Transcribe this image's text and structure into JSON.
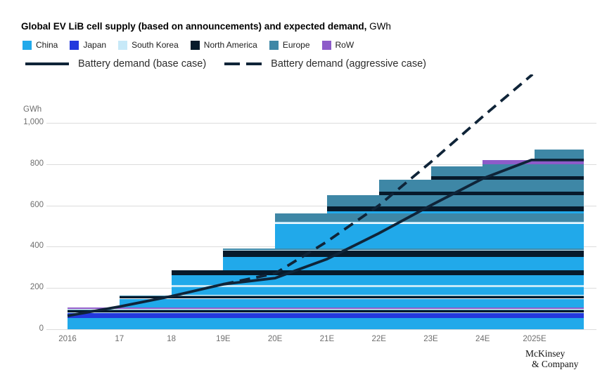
{
  "title": {
    "main": "Global EV LiB cell supply (based on announcements) and expected demand,",
    "unit": "GWh"
  },
  "legend": {
    "regions": [
      {
        "label": "China",
        "color": "#21a9ea"
      },
      {
        "label": "Japan",
        "color": "#2339dd"
      },
      {
        "label": "South Korea",
        "color": "#c7e9f8"
      },
      {
        "label": "North America",
        "color": "#071a2b"
      },
      {
        "label": "Europe",
        "color": "#3e87a6"
      },
      {
        "label": "RoW",
        "color": "#8d5bc9"
      }
    ],
    "lines": [
      {
        "label": "Battery demand (base case)",
        "style": "solid"
      },
      {
        "label": "Battery demand (aggressive case)",
        "style": "dashed"
      }
    ]
  },
  "axes": {
    "y_title": "GWh",
    "y_tick_labels": [
      "0",
      "200",
      "400",
      "600",
      "800",
      "1,000"
    ],
    "y_tick_values": [
      0,
      200,
      400,
      600,
      800,
      1000
    ],
    "x_tick_labels": [
      "2016",
      "17",
      "18",
      "19E",
      "20E",
      "21E",
      "22E",
      "23E",
      "24E",
      "2025E"
    ]
  },
  "colors": {
    "demand_line": "#0f2438",
    "grid": "#dcdcdc",
    "axis_text": "#6e6e6e"
  },
  "logo": {
    "line1": "McKinsey",
    "line2": "& Company"
  },
  "chart_data": {
    "type": "bar",
    "subtype": "stacked-cumulative-supply-with-demand-lines",
    "title": "Global EV LiB cell supply (based on announcements) and expected demand",
    "unit": "GWh",
    "ylabel": "GWh",
    "ylim": [
      0,
      1000
    ],
    "grid": true,
    "legend_position": "top",
    "categories": [
      "2016",
      "17",
      "18",
      "19E",
      "20E",
      "21E",
      "22E",
      "23E",
      "24E",
      "2025E"
    ],
    "supply_totals": [
      105,
      165,
      285,
      390,
      560,
      650,
      725,
      790,
      820,
      870
    ],
    "segments_by_year": [
      {
        "year": "2016",
        "added_from": 0,
        "added_to": 105,
        "segments": [
          {
            "region": "China",
            "from": 0,
            "to": 53
          },
          {
            "region": "Japan",
            "from": 53,
            "to": 77
          },
          {
            "region": "South Korea",
            "from": 77,
            "to": 82
          },
          {
            "region": "North America",
            "from": 82,
            "to": 93
          },
          {
            "region": "Europe",
            "from": 93,
            "to": 97
          },
          {
            "region": "RoW",
            "from": 97,
            "to": 105
          }
        ]
      },
      {
        "year": "17",
        "added_from": 105,
        "added_to": 165,
        "segments": [
          {
            "region": "China",
            "from": 105,
            "to": 148
          },
          {
            "region": "North America",
            "from": 148,
            "to": 162
          },
          {
            "region": "Europe",
            "from": 162,
            "to": 165
          }
        ]
      },
      {
        "year": "18",
        "added_from": 165,
        "added_to": 285,
        "segments": [
          {
            "region": "China",
            "from": 165,
            "to": 203
          },
          {
            "region": "South Korea",
            "from": 203,
            "to": 214
          },
          {
            "region": "China",
            "from": 214,
            "to": 262
          },
          {
            "region": "North America",
            "from": 262,
            "to": 285
          }
        ]
      },
      {
        "year": "19E",
        "added_from": 285,
        "added_to": 390,
        "segments": [
          {
            "region": "China",
            "from": 285,
            "to": 352
          },
          {
            "region": "North America",
            "from": 352,
            "to": 381
          },
          {
            "region": "South Korea",
            "from": 381,
            "to": 385
          },
          {
            "region": "Europe",
            "from": 385,
            "to": 390
          }
        ]
      },
      {
        "year": "20E",
        "added_from": 390,
        "added_to": 560,
        "segments": [
          {
            "region": "China",
            "from": 390,
            "to": 512
          },
          {
            "region": "South Korea",
            "from": 512,
            "to": 522
          },
          {
            "region": "Europe",
            "from": 522,
            "to": 560
          }
        ]
      },
      {
        "year": "21E",
        "added_from": 560,
        "added_to": 650,
        "segments": [
          {
            "region": "China",
            "from": 560,
            "to": 572
          },
          {
            "region": "North America",
            "from": 572,
            "to": 596
          },
          {
            "region": "Europe",
            "from": 596,
            "to": 650
          }
        ]
      },
      {
        "year": "22E",
        "added_from": 650,
        "added_to": 725,
        "segments": [
          {
            "region": "North America",
            "from": 650,
            "to": 666
          },
          {
            "region": "Europe",
            "from": 666,
            "to": 725
          }
        ]
      },
      {
        "year": "23E",
        "added_from": 725,
        "added_to": 790,
        "segments": [
          {
            "region": "North America",
            "from": 725,
            "to": 742
          },
          {
            "region": "Europe",
            "from": 742,
            "to": 790
          }
        ]
      },
      {
        "year": "24E",
        "added_from": 790,
        "added_to": 820,
        "segments": [
          {
            "region": "Europe",
            "from": 790,
            "to": 800
          },
          {
            "region": "RoW",
            "from": 800,
            "to": 820
          }
        ]
      },
      {
        "year": "2025E",
        "added_from": 820,
        "added_to": 870,
        "segments": [
          {
            "region": "Europe",
            "from": 820,
            "to": 870
          }
        ]
      }
    ],
    "lines": [
      {
        "name": "Battery demand (base case)",
        "style": "solid",
        "points": [
          [
            0,
            65
          ],
          [
            1,
            110
          ],
          [
            2,
            160
          ],
          [
            3,
            218
          ],
          [
            4,
            248
          ],
          [
            5,
            340
          ],
          [
            6,
            465
          ],
          [
            7,
            600
          ],
          [
            8,
            730
          ],
          [
            8.94,
            820
          ],
          [
            9.95,
            820
          ]
        ]
      },
      {
        "name": "Battery demand (aggressive case)",
        "style": "dashed",
        "points": [
          [
            3,
            218
          ],
          [
            4,
            270
          ],
          [
            5,
            425
          ],
          [
            6,
            600
          ],
          [
            7,
            810
          ],
          [
            8,
            1030
          ],
          [
            8.96,
            1235
          ]
        ]
      }
    ]
  }
}
